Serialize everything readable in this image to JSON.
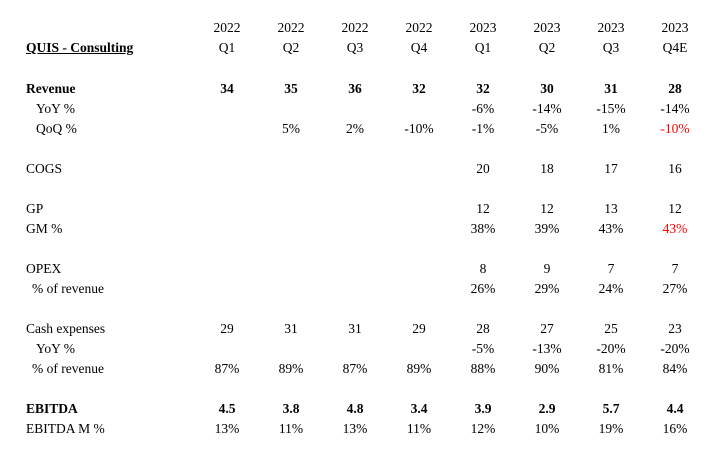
{
  "title": "QUIS - Consulting",
  "headers": [
    {
      "year": "2022",
      "q": "Q1"
    },
    {
      "year": "2022",
      "q": "Q2"
    },
    {
      "year": "2022",
      "q": "Q3"
    },
    {
      "year": "2022",
      "q": "Q4"
    },
    {
      "year": "2023",
      "q": "Q1"
    },
    {
      "year": "2023",
      "q": "Q2"
    },
    {
      "year": "2023",
      "q": "Q3"
    },
    {
      "year": "2023",
      "q": "Q4E"
    }
  ],
  "rows": [
    {
      "label": "Revenue",
      "bold": true,
      "values": [
        "34",
        "35",
        "36",
        "32",
        "32",
        "30",
        "31",
        "28"
      ]
    },
    {
      "label": "YoY %",
      "values": [
        "",
        "",
        "",
        "",
        "-6%",
        "-14%",
        "-15%",
        "-14%"
      ]
    },
    {
      "label": "QoQ %",
      "values": [
        "",
        "5%",
        "2%",
        "-10%",
        "-1%",
        "-5%",
        "1%",
        "-10%"
      ],
      "highlight_last": true
    },
    {
      "label": "COGS",
      "values": [
        "",
        "",
        "",
        "",
        "20",
        "18",
        "17",
        "16"
      ]
    },
    {
      "label": "GP",
      "values": [
        "",
        "",
        "",
        "",
        "12",
        "12",
        "13",
        "12"
      ]
    },
    {
      "label": "GM %",
      "values": [
        "",
        "",
        "",
        "",
        "38%",
        "39%",
        "43%",
        "43%"
      ],
      "highlight_last": true
    },
    {
      "label": "OPEX",
      "values": [
        "",
        "",
        "",
        "",
        "8",
        "9",
        "7",
        "7"
      ]
    },
    {
      "label": "% of revenue",
      "values": [
        "",
        "",
        "",
        "",
        "26%",
        "29%",
        "24%",
        "27%"
      ]
    },
    {
      "label": "Cash expenses",
      "values": [
        "29",
        "31",
        "31",
        "29",
        "28",
        "27",
        "25",
        "23"
      ]
    },
    {
      "label": "YoY %",
      "values": [
        "",
        "",
        "",
        "",
        "-5%",
        "-13%",
        "-20%",
        "-20%"
      ]
    },
    {
      "label": "% of revenue",
      "values": [
        "87%",
        "89%",
        "87%",
        "89%",
        "88%",
        "90%",
        "81%",
        "84%"
      ]
    },
    {
      "label": "EBITDA",
      "bold": true,
      "values": [
        "4.5",
        "3.8",
        "4.8",
        "3.4",
        "3.9",
        "2.9",
        "5.7",
        "4.4"
      ]
    },
    {
      "label": "EBITDA M %",
      "values": [
        "13%",
        "11%",
        "13%",
        "11%",
        "12%",
        "10%",
        "19%",
        "16%"
      ]
    }
  ],
  "colors": {
    "highlight": "#ff0000",
    "text": "#000000"
  }
}
